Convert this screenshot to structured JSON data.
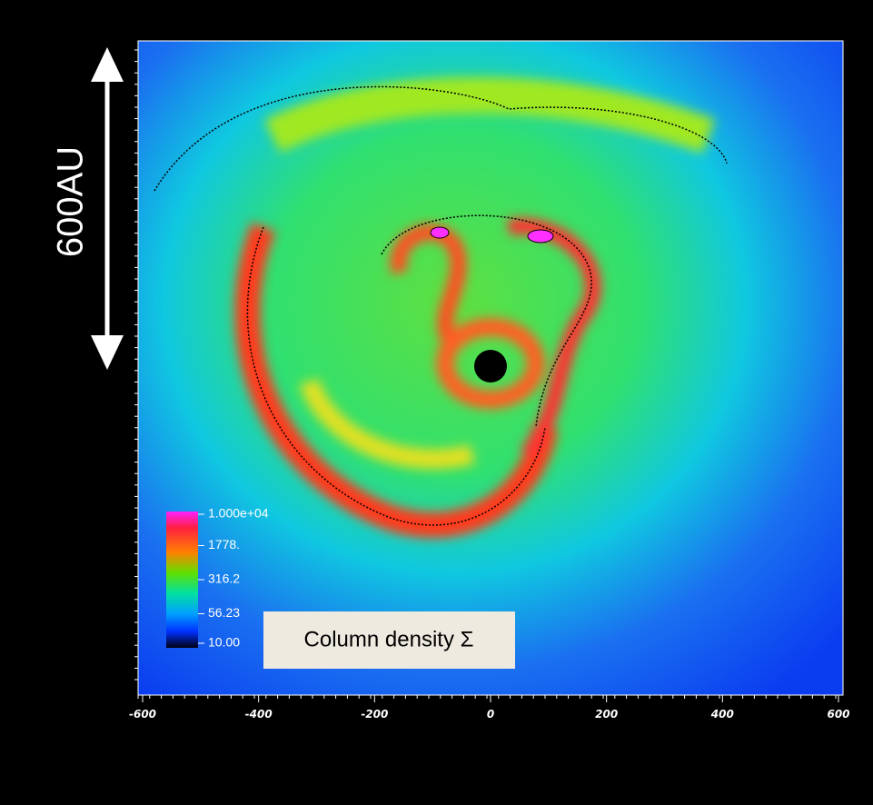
{
  "chart_data": {
    "type": "image",
    "xlim": [
      -600,
      600
    ],
    "xticks": [
      -600,
      -400,
      -200,
      0,
      200,
      400,
      600
    ],
    "colorbar": {
      "lim": [
        10,
        10000
      ],
      "log": true,
      "ticks": [
        {
          "value": 10000,
          "label": "1.000e+04"
        },
        {
          "value": 1778,
          "label": "1778."
        },
        316.2,
        56.23,
        {
          "value": 10,
          "label": "10.00"
        }
      ]
    },
    "scale_label": "600AU",
    "quantity_label": "Column density Σ"
  }
}
